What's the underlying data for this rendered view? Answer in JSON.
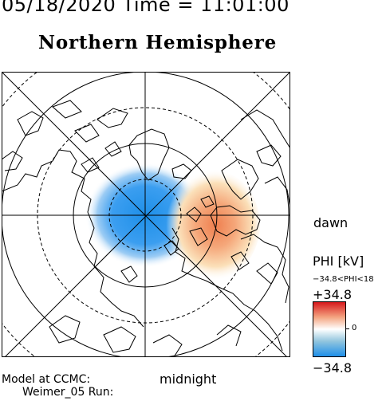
{
  "header": {
    "datetime": "05/18/2020 Time = 11:01:00",
    "hemisphere": "Northern Hemisphere"
  },
  "labels": {
    "dawn": "dawn",
    "midnight": "midnight",
    "model_line1": "Model at CCMC:",
    "model_line2": "Weimer_05 Run:"
  },
  "colorbar": {
    "title": "PHI [kV]",
    "range_text": "−34.8<PHI<18",
    "max_label": "+34.8",
    "zero_label": "0",
    "min_label": "−34.8",
    "colors": {
      "max": "#d7191c",
      "mid": "#ffffff",
      "min": "#1e8fe8"
    }
  },
  "map": {
    "projection": "polar stereographic, north pole centered",
    "grid": "latitude circles every 10 degrees, longitude lines every 45 degrees",
    "potential_cells": [
      {
        "sign": "negative",
        "peak_kV": -34.8,
        "color": "#1e8fe8"
      },
      {
        "sign": "positive",
        "peak_kV": 18,
        "color": "#e8864a"
      }
    ]
  }
}
